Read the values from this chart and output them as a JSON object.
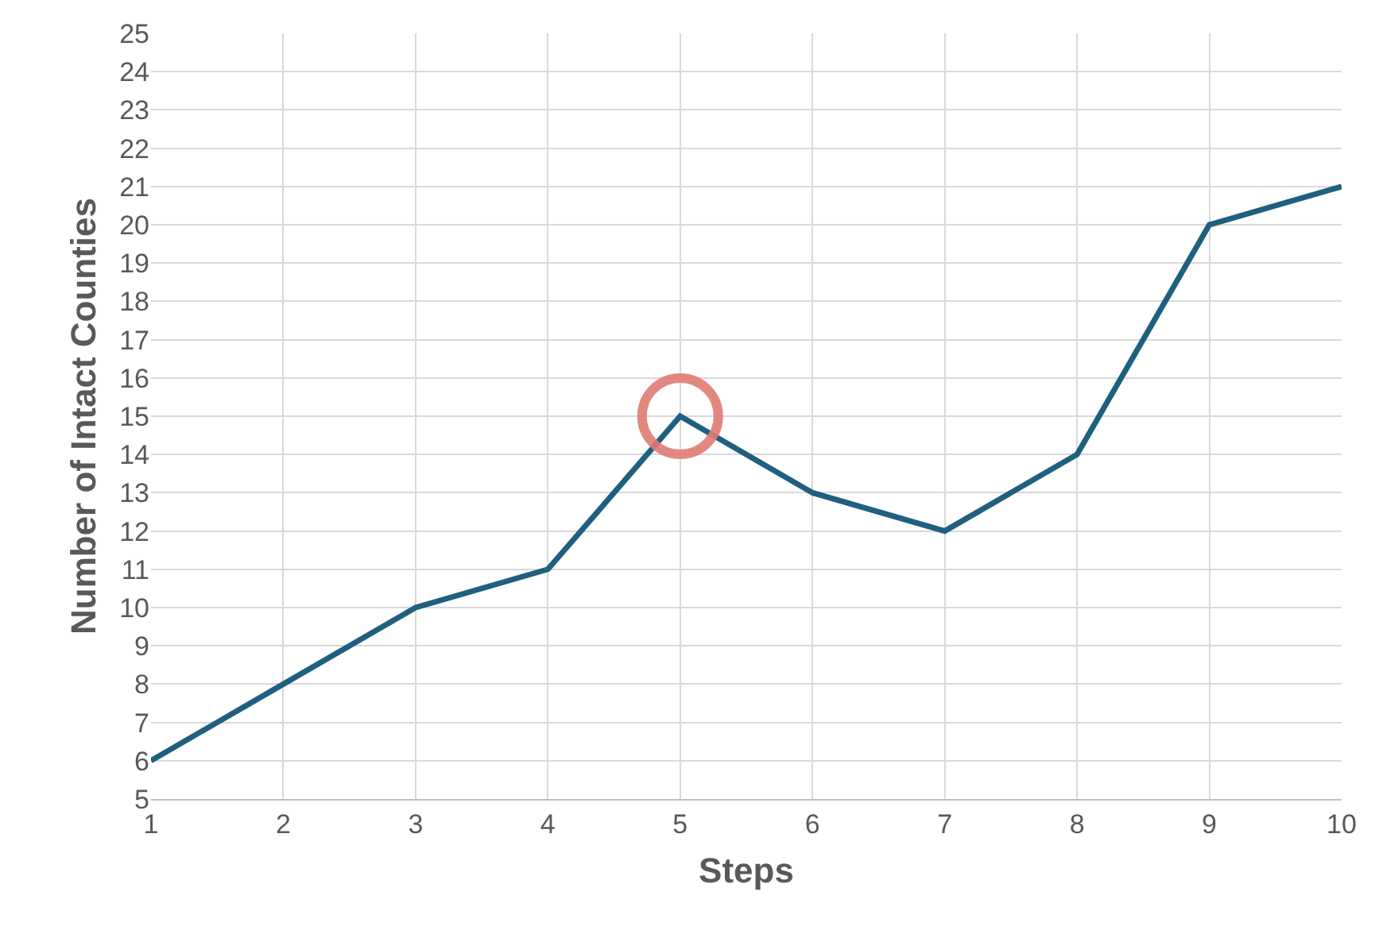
{
  "chart_data": {
    "type": "line",
    "xlabel": "Steps",
    "ylabel": "Number of Intact Counties",
    "x": [
      1,
      2,
      3,
      4,
      5,
      6,
      7,
      8,
      9,
      10
    ],
    "series": [
      {
        "color": "#1f5f7f",
        "values": [
          6,
          8,
          10,
          11,
          15,
          13,
          12,
          14,
          20,
          21
        ]
      },
      {
        "type": "scatter",
        "x": [
          5
        ],
        "color": "#e07b73",
        "marker": "circle",
        "values": [
          15
        ]
      }
    ],
    "xlim": [
      1,
      10
    ],
    "xticks": [
      1,
      2,
      3,
      4,
      5,
      6,
      7,
      8,
      9,
      10
    ],
    "ylim": [
      5,
      25
    ],
    "yticks": [
      5,
      6,
      7,
      8,
      9,
      10,
      11,
      12,
      13,
      14,
      15,
      16,
      17,
      18,
      19,
      20,
      21,
      22,
      23,
      24,
      25
    ],
    "grid": true,
    "marker": "none",
    "line_style": "solid"
  }
}
